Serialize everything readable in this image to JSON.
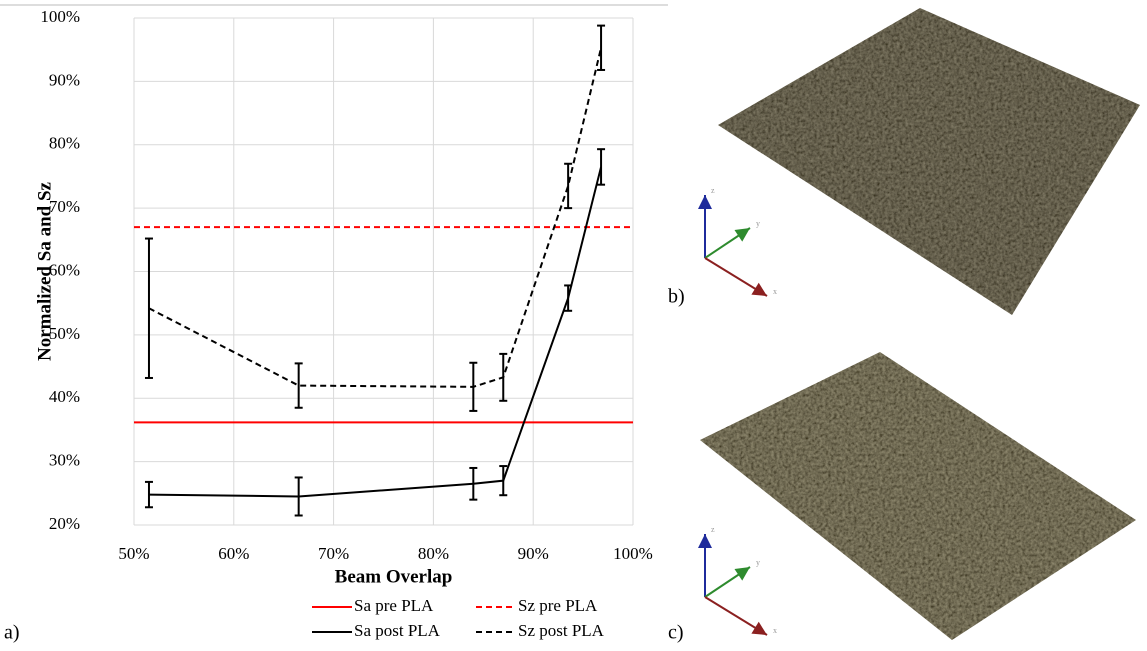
{
  "chart_data": {
    "type": "line",
    "x_label": "Beam Overlap",
    "y_label": "Normalized Sa and Sz",
    "xlim": [
      50,
      100
    ],
    "xticks": [
      {
        "value": 50,
        "label": "50%"
      },
      {
        "value": 60,
        "label": "60%"
      },
      {
        "value": 70,
        "label": "70%"
      },
      {
        "value": 80,
        "label": "80%"
      },
      {
        "value": 90,
        "label": "90%"
      },
      {
        "value": 100,
        "label": "100%"
      }
    ],
    "ylim": [
      20,
      100
    ],
    "yticks": [
      {
        "value": 20,
        "label": "20%"
      },
      {
        "value": 30,
        "label": "30%"
      },
      {
        "value": 40,
        "label": "40%"
      },
      {
        "value": 50,
        "label": "50%"
      },
      {
        "value": 60,
        "label": "60%"
      },
      {
        "value": 70,
        "label": "70%"
      },
      {
        "value": 80,
        "label": "80%"
      },
      {
        "value": 90,
        "label": "90%"
      },
      {
        "value": 100,
        "label": "100%"
      }
    ],
    "grid": true,
    "series": [
      {
        "name": "Sa pre PLA",
        "color": "#ff0000",
        "dashed": false,
        "x": [
          50,
          100
        ],
        "values": [
          36.2,
          36.2
        ]
      },
      {
        "name": "Sz pre PLA",
        "color": "#ff0000",
        "dashed": true,
        "x": [
          50,
          100
        ],
        "values": [
          67,
          67
        ]
      },
      {
        "name": "Sa post PLA",
        "color": "#000000",
        "dashed": false,
        "x": [
          51.5,
          66.5,
          84,
          87,
          93.5,
          96.8
        ],
        "values": [
          24.8,
          24.5,
          26.5,
          27,
          55.8,
          76.5
        ],
        "errors": [
          2,
          3,
          2.5,
          2.3,
          2,
          2.8
        ]
      },
      {
        "name": "Sz post PLA",
        "color": "#000000",
        "dashed": true,
        "x": [
          51.5,
          66.5,
          84,
          87,
          93.5,
          96.8
        ],
        "values": [
          54.2,
          42,
          41.8,
          43.3,
          73.5,
          95.3
        ],
        "errors": [
          11,
          3.5,
          3.8,
          3.7,
          3.5,
          3.5
        ]
      }
    ]
  },
  "panel_labels": [
    "a)",
    "b)",
    "c)"
  ],
  "triad_axes": [
    "z",
    "y",
    "x"
  ]
}
